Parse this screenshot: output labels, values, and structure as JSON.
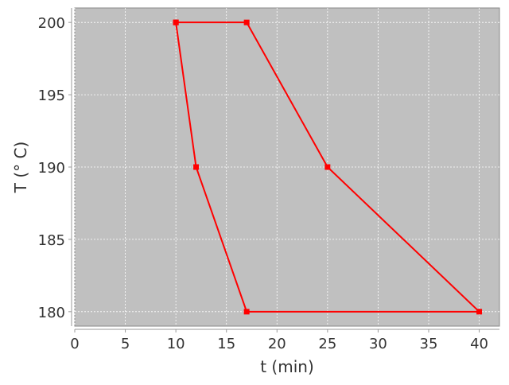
{
  "chart_data": {
    "type": "line",
    "title": "",
    "xlabel": "t (min)",
    "ylabel": "T (° C)",
    "xlim": [
      0,
      42
    ],
    "ylim": [
      179,
      201
    ],
    "xticks": [
      0,
      5,
      10,
      15,
      20,
      25,
      30,
      35,
      40
    ],
    "yticks": [
      180,
      185,
      190,
      195,
      200
    ],
    "grid": true,
    "closed": true,
    "series": [
      {
        "x": [
          10,
          17,
          25,
          40,
          17,
          12,
          10
        ],
        "y": [
          200,
          200,
          190,
          180,
          180,
          190,
          200
        ],
        "color": "#ff0000",
        "marker": "square"
      }
    ],
    "plot_background": "#c0c0c0"
  }
}
